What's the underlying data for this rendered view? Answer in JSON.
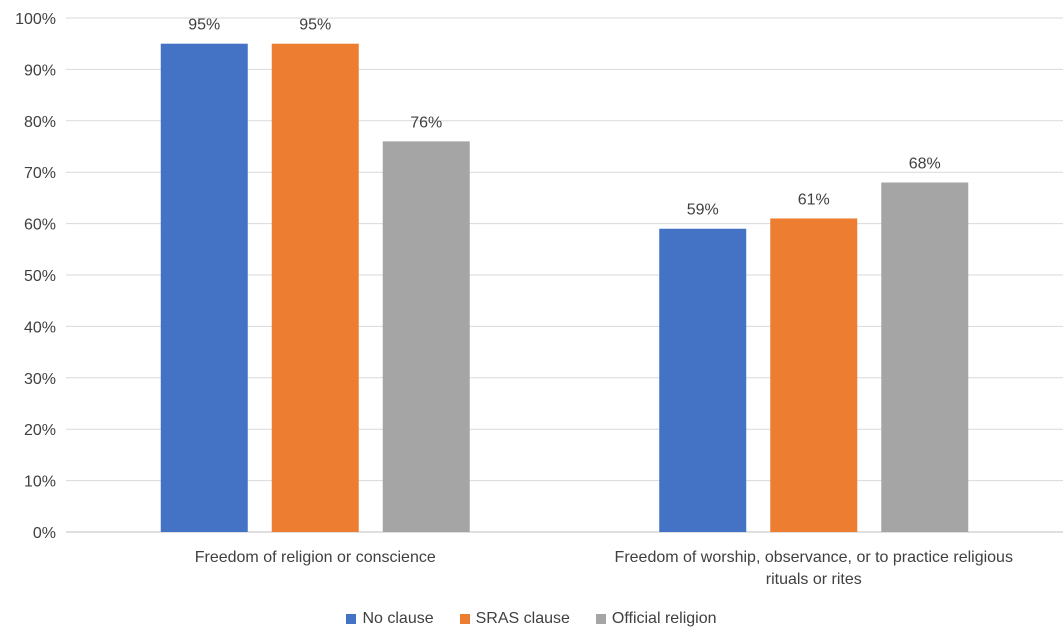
{
  "chart_data": {
    "type": "bar",
    "categories": [
      [
        "Freedom of religion or conscience"
      ],
      [
        "Freedom of worship, observance, or to practice religious",
        "rituals or rites"
      ]
    ],
    "series": [
      {
        "name": "No clause",
        "color": "#4472C4",
        "values": [
          95,
          59
        ]
      },
      {
        "name": "SRAS clause",
        "color": "#ED7D31",
        "values": [
          95,
          61
        ]
      },
      {
        "name": "Official religion",
        "color": "#A5A5A5",
        "values": [
          76,
          68
        ]
      }
    ],
    "data_labels": [
      [
        "95%",
        "59%"
      ],
      [
        "95%",
        "61%"
      ],
      [
        "76%",
        "68%"
      ]
    ],
    "y_ticks": [
      "0%",
      "10%",
      "20%",
      "30%",
      "40%",
      "50%",
      "60%",
      "70%",
      "80%",
      "90%",
      "100%"
    ],
    "ylim": [
      0,
      100
    ],
    "grid": true,
    "legend_position": "bottom",
    "title": "",
    "xlabel": "",
    "ylabel": ""
  }
}
